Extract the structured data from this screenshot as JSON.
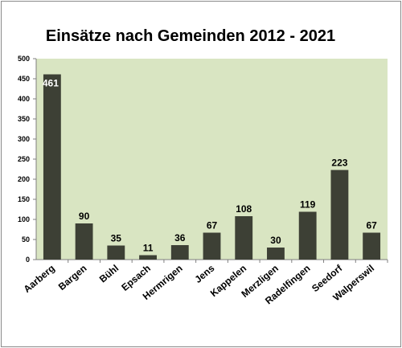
{
  "chart_data": {
    "type": "bar",
    "title": "Einsätze nach Gemeinden 2012 - 2021",
    "xlabel": "",
    "ylabel": "",
    "ylim": [
      0,
      500
    ],
    "yticks": [
      0,
      50,
      100,
      150,
      200,
      250,
      300,
      350,
      400,
      450,
      500
    ],
    "categories": [
      "Aarberg",
      "Bargen",
      "Bühl",
      "Epsach",
      "Hermrigen",
      "Jens",
      "Kappelen",
      "Merzligen",
      "Radelfingen",
      "Seedorf",
      "Walperswil"
    ],
    "values": [
      461,
      90,
      35,
      11,
      36,
      67,
      108,
      30,
      119,
      223,
      67
    ],
    "grid": false,
    "legend": "none",
    "colors": {
      "plot_background": "#d9e5c2",
      "bar": "#3d4035",
      "axis": "#7f7f7f"
    }
  }
}
